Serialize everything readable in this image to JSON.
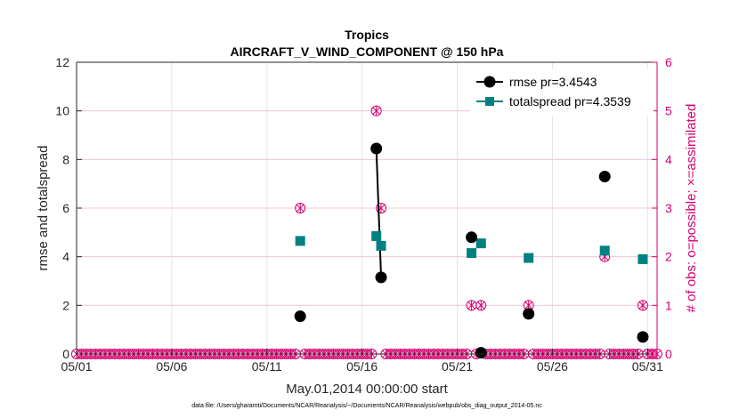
{
  "chart_data": {
    "type": "line",
    "title": "Tropics",
    "subtitle": "AIRCRAFT_V_WIND_COMPONENT @ 150 hPa",
    "xlabel": "May.01,2014 00:00:00 start",
    "ylabel": "rmse and totalspread",
    "y2label": "# of obs: o=possible; ×=assimilated",
    "footnote": "data file: /Users/gharamti/Documents/NCAR/Reanalysis/~/Documents/NCAR/Reanalysis/webpub/obs_diag_output_2014-05.nc",
    "xlim": [
      1,
      31.5
    ],
    "ylim": [
      0,
      12
    ],
    "y2lim": [
      0,
      6
    ],
    "x_ticks": [
      1,
      6,
      11,
      16,
      21,
      26,
      31
    ],
    "x_tick_labels": [
      "05/01",
      "05/06",
      "05/11",
      "05/16",
      "05/21",
      "05/26",
      "05/31"
    ],
    "y_ticks": [
      0,
      2,
      4,
      6,
      8,
      10,
      12
    ],
    "y_tick_labels": [
      "0",
      "2",
      "4",
      "6",
      "8",
      "10",
      "12"
    ],
    "y2_ticks": [
      0,
      1,
      2,
      3,
      4,
      5,
      6
    ],
    "y2_tick_labels": [
      "0",
      "1",
      "2",
      "3",
      "4",
      "5",
      "6"
    ],
    "grid": true,
    "legend_position": "top-right",
    "series": [
      {
        "name": "rmse pr=3.4543",
        "color": "#000000",
        "marker": "circle",
        "points": [
          [
            12.75,
            1.55
          ],
          [
            16.75,
            8.45
          ],
          [
            17.0,
            3.15
          ],
          [
            21.75,
            4.8
          ],
          [
            22.25,
            0.05
          ],
          [
            24.75,
            1.65
          ],
          [
            28.75,
            7.3
          ],
          [
            30.75,
            0.7
          ]
        ],
        "segments": [
          [
            [
              16.75,
              8.45
            ],
            [
              17.0,
              3.15
            ]
          ]
        ]
      },
      {
        "name": "totalspread pr=4.3539",
        "color": "#008080",
        "marker": "square",
        "points": [
          [
            12.75,
            4.65
          ],
          [
            16.75,
            4.85
          ],
          [
            17.0,
            4.45
          ],
          [
            21.75,
            4.15
          ],
          [
            22.25,
            4.55
          ],
          [
            24.75,
            3.95
          ],
          [
            28.75,
            4.25
          ],
          [
            30.75,
            3.9
          ]
        ],
        "segments": [
          [
            [
              16.75,
              4.85
            ],
            [
              17.0,
              4.45
            ]
          ]
        ]
      },
      {
        "name": "# of obs",
        "axis": "right",
        "color": "#d6006f",
        "marker": "circle-x",
        "nonzero_points": [
          [
            12.75,
            3
          ],
          [
            16.75,
            5
          ],
          [
            17.0,
            3
          ],
          [
            21.75,
            1
          ],
          [
            22.25,
            1
          ],
          [
            24.75,
            1
          ],
          [
            28.75,
            2
          ],
          [
            30.75,
            1
          ]
        ],
        "baseline_x_start": 1,
        "baseline_x_end": 31.5,
        "baseline_step": 0.25,
        "baseline_value": 0
      }
    ]
  }
}
